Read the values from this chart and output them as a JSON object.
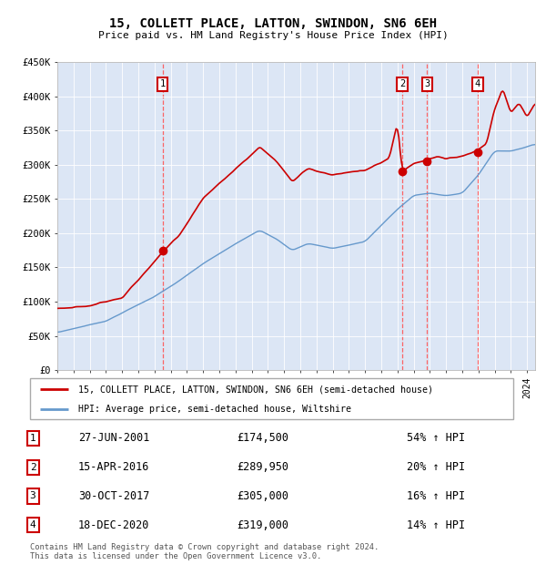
{
  "title": "15, COLLETT PLACE, LATTON, SWINDON, SN6 6EH",
  "subtitle": "Price paid vs. HM Land Registry's House Price Index (HPI)",
  "ylim": [
    0,
    450000
  ],
  "yticks": [
    0,
    50000,
    100000,
    150000,
    200000,
    250000,
    300000,
    350000,
    400000,
    450000
  ],
  "ytick_labels": [
    "£0",
    "£50K",
    "£100K",
    "£150K",
    "£200K",
    "£250K",
    "£300K",
    "£350K",
    "£400K",
    "£450K"
  ],
  "xlim_start": 1995.0,
  "xlim_end": 2024.5,
  "plot_bg_color": "#dce6f5",
  "red_line_color": "#cc0000",
  "blue_line_color": "#6699cc",
  "dashed_line_color": "#ff5555",
  "sale_marker_color": "#cc0000",
  "legend_label_red": "15, COLLETT PLACE, LATTON, SWINDON, SN6 6EH (semi-detached house)",
  "legend_label_blue": "HPI: Average price, semi-detached house, Wiltshire",
  "sales": [
    {
      "id": 1,
      "date": "27-JUN-2001",
      "price": 174500,
      "pct": "54%",
      "year": 2001.49
    },
    {
      "id": 2,
      "date": "15-APR-2016",
      "price": 289950,
      "pct": "20%",
      "year": 2016.29
    },
    {
      "id": 3,
      "date": "30-OCT-2017",
      "price": 305000,
      "pct": "16%",
      "year": 2017.83
    },
    {
      "id": 4,
      "date": "18-DEC-2020",
      "price": 319000,
      "pct": "14%",
      "year": 2020.96
    }
  ],
  "footer": "Contains HM Land Registry data © Crown copyright and database right 2024.\nThis data is licensed under the Open Government Licence v3.0.",
  "table_rows": [
    {
      "id": 1,
      "date": "27-JUN-2001",
      "price": "£174,500",
      "pct": "54% ↑ HPI"
    },
    {
      "id": 2,
      "date": "15-APR-2016",
      "price": "£289,950",
      "pct": "20% ↑ HPI"
    },
    {
      "id": 3,
      "date": "30-OCT-2017",
      "price": "£305,000",
      "pct": "16% ↑ HPI"
    },
    {
      "id": 4,
      "date": "18-DEC-2020",
      "price": "£319,000",
      "pct": "14% ↑ HPI"
    }
  ]
}
